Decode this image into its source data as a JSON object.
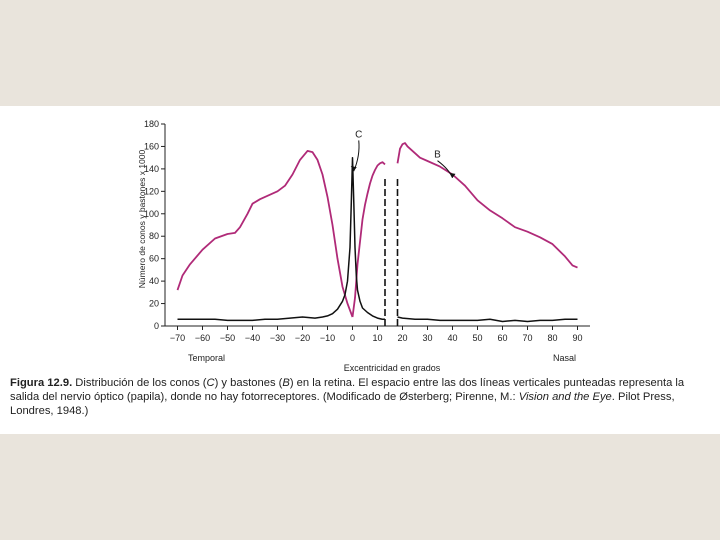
{
  "page": {
    "background": "#e9e4dc",
    "panel_background": "#ffffff"
  },
  "caption": {
    "label": "Figura 12.9.",
    "part1": "Distribución de los conos (",
    "c_letter": "C",
    "part2": ") y bastones (",
    "b_letter": "B",
    "part3": ") en la retina. El espacio entre las dos líneas verticales punteadas representa la salida del nervio óptico (papila), donde no hay fotorreceptores. (Modificado de Østerberg; Pirenne, M.: ",
    "book": "Vision and the Eye",
    "part4": ". Pilot Press, Londres, 1948.)"
  },
  "chart_data": {
    "type": "line",
    "title": "",
    "ylabel": "Número de conos y bastones x 1000",
    "xlabel": "Excentricidad en grados",
    "x_left_label": "Temporal",
    "x_right_label": "Nasal",
    "xlim": [
      -75,
      95
    ],
    "ylim": [
      0,
      180
    ],
    "xticks": [
      -70,
      -60,
      -50,
      -40,
      -30,
      -20,
      -10,
      0,
      10,
      20,
      30,
      40,
      50,
      60,
      70,
      80,
      90
    ],
    "yticks": [
      0,
      20,
      40,
      60,
      80,
      100,
      120,
      140,
      160,
      180
    ],
    "grid": false,
    "blind_spot": [
      13,
      18
    ],
    "colors": {
      "rods": "#b02a78",
      "cones": "#111111",
      "axis": "#222222"
    },
    "annotations": [
      {
        "text": "C",
        "x": 2.5,
        "y": 168,
        "arrow_to": [
          0.5,
          138
        ]
      },
      {
        "text": "B",
        "x": 34,
        "y": 150,
        "arrow_to": [
          40,
          132
        ]
      }
    ],
    "series": [
      {
        "name": "B",
        "segments": [
          {
            "x": [
              -70,
              -68,
              -65,
              -60,
              -55,
              -50,
              -47,
              -45,
              -42,
              -40,
              -37,
              -33,
              -30,
              -27,
              -24,
              -21,
              -18,
              -16,
              -14,
              -12,
              -10,
              -8,
              -6,
              -4,
              -2,
              0
            ],
            "y": [
              32,
              45,
              55,
              68,
              78,
              82,
              83,
              88,
              100,
              109,
              113,
              117,
              120,
              125,
              135,
              148,
              156,
              155,
              148,
              135,
              115,
              90,
              60,
              35,
              20,
              8
            ]
          },
          {
            "x": [
              0,
              1,
              2,
              3,
              4,
              5,
              6,
              7,
              8,
              9,
              10,
              11,
              12,
              13
            ],
            "y": [
              8,
              25,
              55,
              75,
              95,
              108,
              118,
              127,
              134,
              139,
              143,
              145,
              146,
              144
            ]
          },
          {
            "x": [
              18,
              19,
              20,
              21,
              22,
              24,
              27,
              30,
              35,
              40,
              45,
              50,
              55,
              60,
              65,
              70,
              75,
              80,
              85,
              88,
              90
            ],
            "y": [
              145,
              158,
              162,
              163,
              160,
              156,
              150,
              147,
              142,
              135,
              125,
              112,
              103,
              96,
              88,
              84,
              79,
              73,
              62,
              54,
              52
            ]
          }
        ]
      },
      {
        "name": "C",
        "segments": [
          {
            "x": [
              -70,
              -65,
              -60,
              -55,
              -50,
              -45,
              -40,
              -35,
              -30,
              -25,
              -20,
              -15,
              -12,
              -10,
              -8,
              -6,
              -4,
              -3,
              -2,
              -1,
              -0.5,
              0,
              0.5,
              1,
              1.5,
              2,
              3,
              4,
              6,
              8,
              10,
              12,
              13
            ],
            "y": [
              6,
              6,
              6,
              6,
              5,
              5,
              5,
              6,
              6,
              7,
              8,
              7,
              8,
              9,
              11,
              15,
              22,
              28,
              40,
              70,
              110,
              150,
              110,
              70,
              45,
              32,
              22,
              16,
              12,
              9,
              7,
              6,
              6
            ]
          },
          {
            "x": [
              18,
              20,
              25,
              30,
              35,
              40,
              45,
              50,
              55,
              60,
              65,
              70,
              75,
              80,
              85,
              90
            ],
            "y": [
              8,
              7,
              6,
              6,
              5,
              5,
              5,
              5,
              6,
              4,
              5,
              4,
              5,
              5,
              6,
              6
            ]
          }
        ]
      }
    ]
  }
}
